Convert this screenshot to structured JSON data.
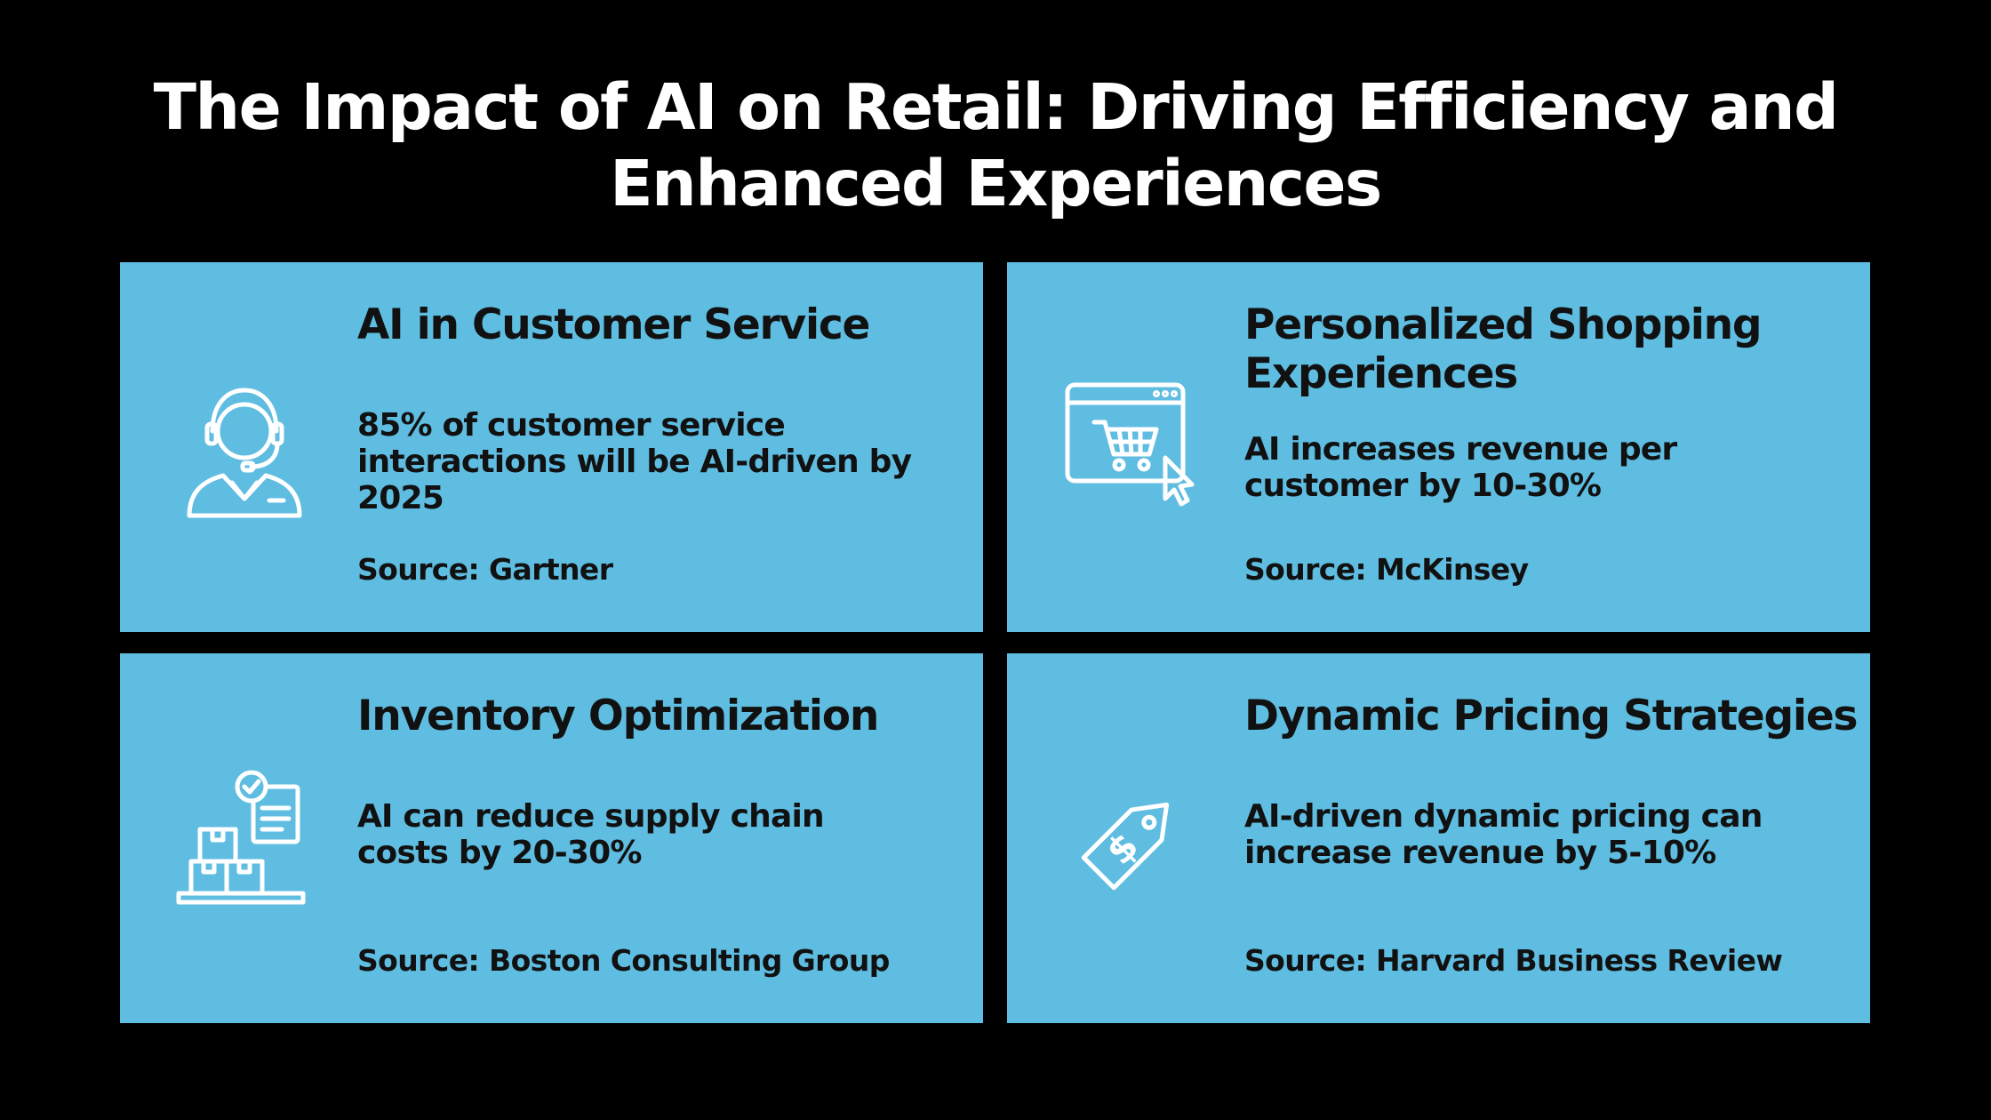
{
  "title": {
    "line1": "The Impact of AI on Retail: Driving Efficiency and",
    "line2": "Enhanced Experiences"
  },
  "colors": {
    "background": "#000000",
    "card": "#5fbde1",
    "title_text": "#ffffff",
    "card_text": "#111111",
    "icon_stroke": "#ffffff"
  },
  "cards": [
    {
      "heading": "AI in Customer Service",
      "body": "85% of customer service interactions will be AI-driven by 2025",
      "source": "Source: Gartner",
      "icon": "customer-support-headset-icon"
    },
    {
      "heading": "Personalized Shopping Experiences",
      "body": "AI increases revenue per customer by 10-30%",
      "source": "Source: McKinsey",
      "icon": "online-shopping-cart-icon"
    },
    {
      "heading": "Inventory Optimization",
      "body": "AI can reduce supply chain costs by 20-30%",
      "source": "Source: Boston Consulting Group",
      "icon": "inventory-boxes-checklist-icon"
    },
    {
      "heading": "Dynamic Pricing Strategies",
      "body": "AI-driven dynamic pricing can increase revenue by 5-10%",
      "source": "Source: Harvard Business Review",
      "icon": "price-tag-dollar-icon"
    }
  ]
}
